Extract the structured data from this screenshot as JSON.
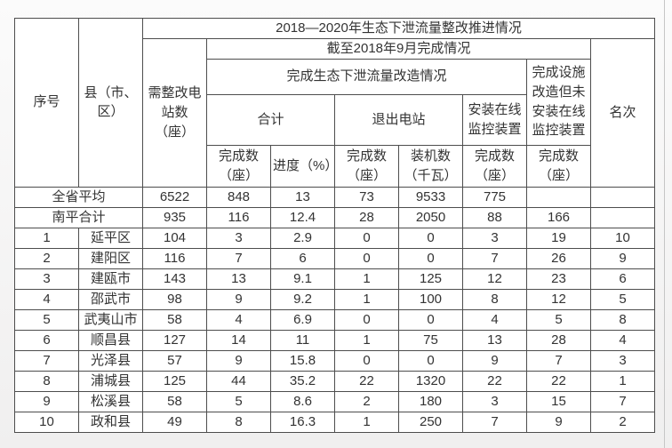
{
  "colors": {
    "table_border": "#4d4d4d",
    "text": "#333333",
    "cell_background": "#ffffff",
    "page_background": "#f5f5f5",
    "page_edge_line": "#c6c6c6"
  },
  "table": {
    "title": "2018—2020年生态下泄流量整改推进情况",
    "header": {
      "seq": "序号",
      "county": "县（市、区）",
      "stations_to_rectify": "需整改电站数（座）",
      "as_of": "截至2018年9月完成情况",
      "flow_reform_group": "完成生态下泄流量改造情况",
      "total_group": "合计",
      "exited_stations_group": "退出电站",
      "online_monitoring_group": "安装在线监控装置",
      "facility_no_monitoring_group": "完成设施改造但未安装在线监控装置",
      "rank": "名次",
      "total_completed": "完成数（座）",
      "total_progress": "进度（%）",
      "exit_completed": "完成数（座）",
      "exit_capacity": "装机数（千瓦）",
      "online_completed": "完成数（座）",
      "facility_completed": "完成数（座）"
    },
    "rows": [
      {
        "seq": "",
        "name": "全省平均",
        "values": [
          "6522",
          "848",
          "13",
          "73",
          "9533",
          "775",
          "",
          ""
        ]
      },
      {
        "seq": "",
        "name": "南平合计",
        "values": [
          "935",
          "116",
          "12.4",
          "28",
          "2050",
          "88",
          "166",
          ""
        ]
      },
      {
        "seq": "1",
        "name": "延平区",
        "values": [
          "104",
          "3",
          "2.9",
          "0",
          "0",
          "3",
          "19",
          "10"
        ]
      },
      {
        "seq": "2",
        "name": "建阳区",
        "values": [
          "116",
          "7",
          "6",
          "0",
          "0",
          "7",
          "26",
          "9"
        ]
      },
      {
        "seq": "3",
        "name": "建瓯市",
        "values": [
          "143",
          "13",
          "9.1",
          "1",
          "125",
          "12",
          "23",
          "6"
        ]
      },
      {
        "seq": "4",
        "name": "邵武市",
        "values": [
          "98",
          "9",
          "9.2",
          "1",
          "100",
          "8",
          "12",
          "5"
        ]
      },
      {
        "seq": "5",
        "name": "武夷山市",
        "values": [
          "58",
          "4",
          "6.9",
          "0",
          "0",
          "4",
          "5",
          "8"
        ]
      },
      {
        "seq": "6",
        "name": "顺昌县",
        "values": [
          "127",
          "14",
          "11",
          "1",
          "75",
          "13",
          "28",
          "4"
        ]
      },
      {
        "seq": "7",
        "name": "光泽县",
        "values": [
          "57",
          "9",
          "15.8",
          "0",
          "0",
          "9",
          "7",
          "3"
        ]
      },
      {
        "seq": "8",
        "name": "浦城县",
        "values": [
          "125",
          "44",
          "35.2",
          "22",
          "1320",
          "22",
          "22",
          "1"
        ]
      },
      {
        "seq": "9",
        "name": "松溪县",
        "values": [
          "58",
          "5",
          "8.6",
          "2",
          "180",
          "3",
          "15",
          "7"
        ]
      },
      {
        "seq": "10",
        "name": "政和县",
        "values": [
          "49",
          "8",
          "16.3",
          "1",
          "250",
          "7",
          "9",
          "2"
        ]
      }
    ]
  },
  "chart_data": {
    "type": "table",
    "title": "2018—2020年生态下泄流量整改推进情况",
    "subtitle": "截至2018年9月完成情况",
    "columns": [
      "序号",
      "县（市、区）",
      "需整改电站数（座）",
      "合计-完成数（座）",
      "合计-进度（%）",
      "退出电站-完成数（座）",
      "退出电站-装机数（千瓦）",
      "安装在线监控装置-完成数（座）",
      "完成设施改造但未安装在线监控装置-完成数（座）",
      "名次"
    ],
    "rows": [
      [
        "",
        "全省平均",
        6522,
        848,
        13,
        73,
        9533,
        775,
        "",
        ""
      ],
      [
        "",
        "南平合计",
        935,
        116,
        12.4,
        28,
        2050,
        88,
        166,
        ""
      ],
      [
        1,
        "延平区",
        104,
        3,
        2.9,
        0,
        0,
        3,
        19,
        10
      ],
      [
        2,
        "建阳区",
        116,
        7,
        6,
        0,
        0,
        7,
        26,
        9
      ],
      [
        3,
        "建瓯市",
        143,
        13,
        9.1,
        1,
        125,
        12,
        23,
        6
      ],
      [
        4,
        "邵武市",
        98,
        9,
        9.2,
        1,
        100,
        8,
        12,
        5
      ],
      [
        5,
        "武夷山市",
        58,
        4,
        6.9,
        0,
        0,
        4,
        5,
        8
      ],
      [
        6,
        "顺昌县",
        127,
        14,
        11,
        1,
        75,
        13,
        28,
        4
      ],
      [
        7,
        "光泽县",
        57,
        9,
        15.8,
        0,
        0,
        9,
        7,
        3
      ],
      [
        8,
        "浦城县",
        125,
        44,
        35.2,
        22,
        1320,
        22,
        22,
        1
      ],
      [
        9,
        "松溪县",
        58,
        5,
        8.6,
        2,
        180,
        3,
        15,
        7
      ],
      [
        10,
        "政和县",
        49,
        8,
        16.3,
        1,
        250,
        7,
        9,
        2
      ]
    ]
  }
}
